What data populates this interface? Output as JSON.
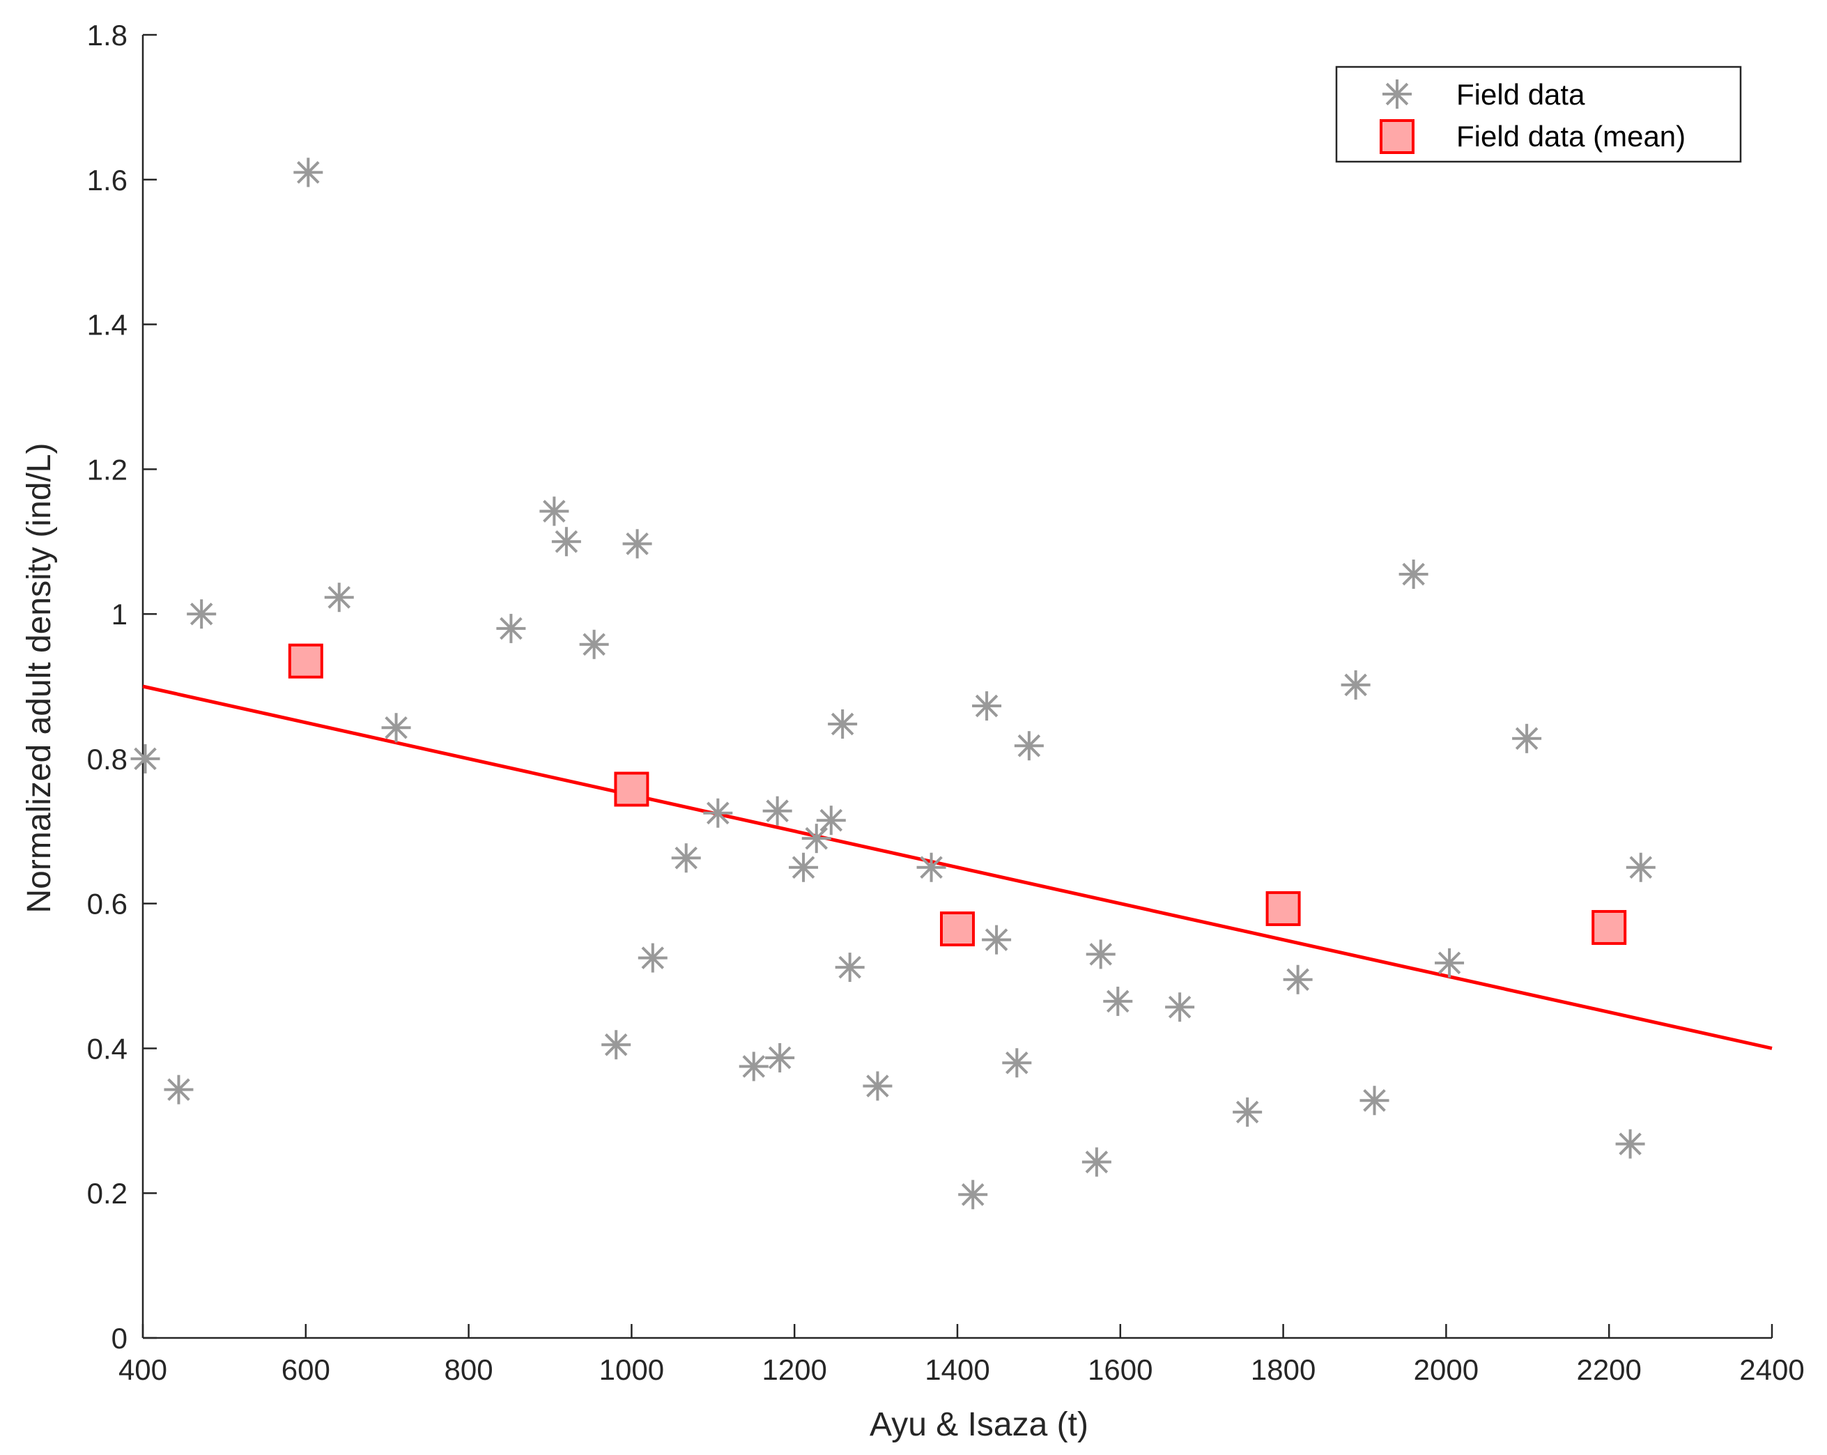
{
  "chart_data": {
    "type": "scatter",
    "xlabel": "Ayu & Isaza (t)",
    "ylabel": "Normalized adult density (ind/L)",
    "xlim": [
      400,
      2400
    ],
    "ylim": [
      0,
      1.8
    ],
    "xticks": [
      400,
      600,
      800,
      1000,
      1200,
      1400,
      1600,
      1800,
      2000,
      2200,
      2400
    ],
    "yticks": [
      0,
      0.2,
      0.4,
      0.6,
      0.8,
      1,
      1.2,
      1.4,
      1.6,
      1.8
    ],
    "grid": false,
    "legend_position": "top-right",
    "series": [
      {
        "name": "Field data",
        "marker": "asterisk",
        "color": "#999999",
        "points": [
          [
            403,
            0.8
          ],
          [
            444,
            0.343
          ],
          [
            472,
            1.0
          ],
          [
            603,
            1.61
          ],
          [
            641,
            1.023
          ],
          [
            711,
            0.843
          ],
          [
            852,
            0.98
          ],
          [
            905,
            1.142
          ],
          [
            920,
            1.1
          ],
          [
            954,
            0.958
          ],
          [
            981,
            0.405
          ],
          [
            1007,
            1.097
          ],
          [
            1026,
            0.525
          ],
          [
            1067,
            0.663
          ],
          [
            1106,
            0.725
          ],
          [
            1150,
            0.375
          ],
          [
            1182,
            0.387
          ],
          [
            1179,
            0.728
          ],
          [
            1211,
            0.65
          ],
          [
            1227,
            0.69
          ],
          [
            1245,
            0.715
          ],
          [
            1259,
            0.848
          ],
          [
            1268,
            0.512
          ],
          [
            1302,
            0.348
          ],
          [
            1368,
            0.65
          ],
          [
            1419,
            0.198
          ],
          [
            1436,
            0.873
          ],
          [
            1448,
            0.55
          ],
          [
            1473,
            0.38
          ],
          [
            1488,
            0.818
          ],
          [
            1571,
            0.243
          ],
          [
            1576,
            0.53
          ],
          [
            1597,
            0.465
          ],
          [
            1673,
            0.457
          ],
          [
            1756,
            0.312
          ],
          [
            1818,
            0.495
          ],
          [
            1889,
            0.902
          ],
          [
            1912,
            0.328
          ],
          [
            1960,
            1.055
          ],
          [
            2004,
            0.518
          ],
          [
            2099,
            0.828
          ],
          [
            2226,
            0.268
          ],
          [
            2239,
            0.65
          ]
        ]
      },
      {
        "name": "Field data (mean)",
        "marker": "square",
        "color": "#ff0000",
        "fill": "#ffa8a8",
        "points": [
          [
            600,
            0.935
          ],
          [
            1000,
            0.758
          ],
          [
            1400,
            0.565
          ],
          [
            1800,
            0.593
          ],
          [
            2200,
            0.567
          ]
        ]
      }
    ],
    "fit_line": {
      "color": "#ff0000",
      "points": [
        [
          400,
          0.9
        ],
        [
          2400,
          0.4
        ]
      ]
    }
  }
}
